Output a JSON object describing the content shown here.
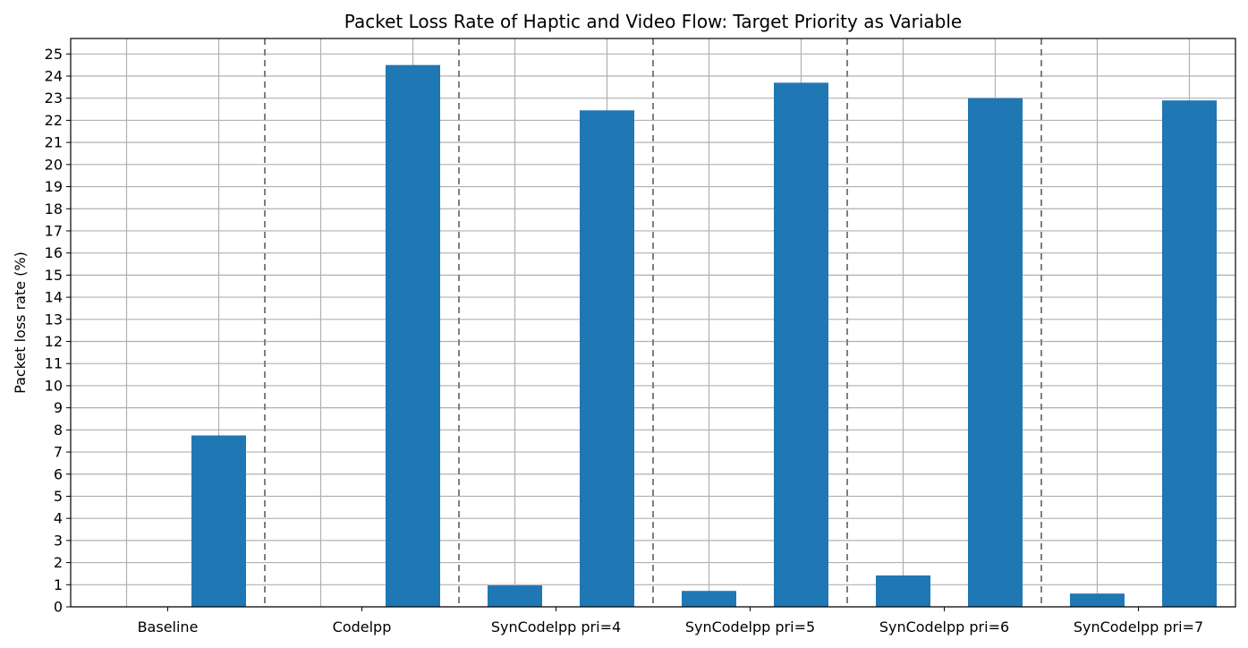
{
  "chart_data": {
    "type": "bar",
    "title": "Packet Loss Rate of Haptic and Video Flow: Target Priority as Variable",
    "xlabel": "",
    "ylabel": "Packet loss rate (%)",
    "ylim": [
      0,
      25.7
    ],
    "y_ticks": [
      0,
      1,
      2,
      3,
      4,
      5,
      6,
      7,
      8,
      9,
      10,
      11,
      12,
      13,
      14,
      15,
      16,
      17,
      18,
      19,
      20,
      21,
      22,
      23,
      24,
      25
    ],
    "grid": true,
    "bar_color": "#1f77b4",
    "separator_color": "#7f7f7f",
    "categories": [
      "Baseline",
      "Codelpp",
      "SynCodelpp pri=4",
      "SynCodelpp pri=5",
      "SynCodelpp pri=6",
      "SynCodelpp pri=7"
    ],
    "series": [
      {
        "values": [
          0,
          0,
          0.97,
          0.72,
          1.42,
          0.6
        ]
      },
      {
        "values": [
          7.75,
          24.5,
          22.45,
          23.7,
          23.0,
          22.9
        ]
      }
    ]
  }
}
